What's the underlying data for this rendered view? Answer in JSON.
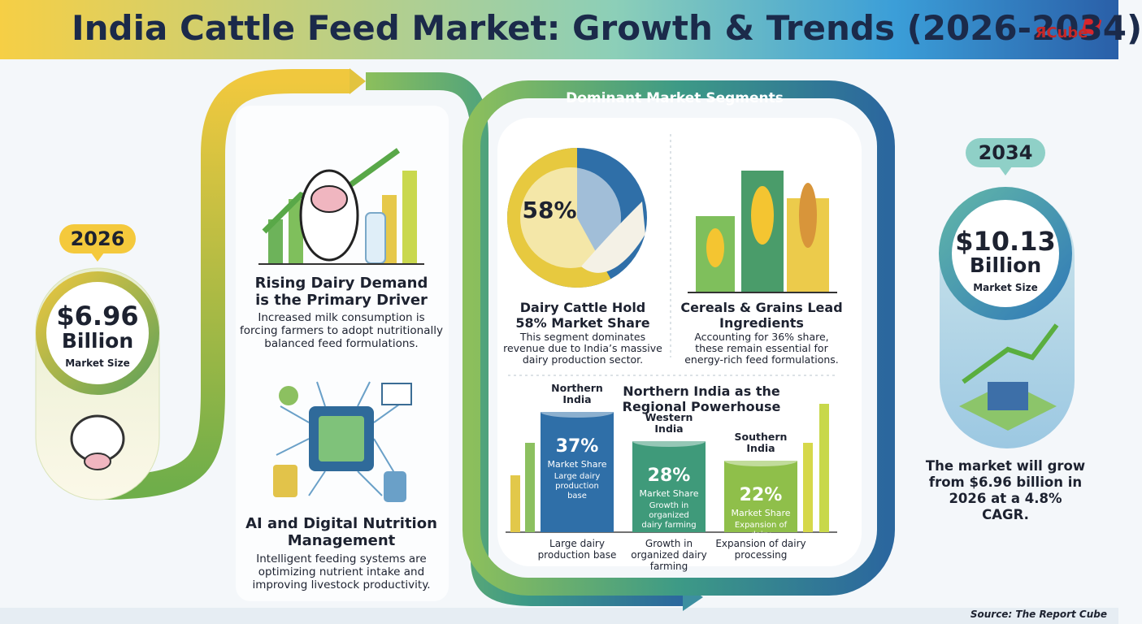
{
  "header": {
    "title": "India Cattle Feed Market: Growth & Trends (2026-2034)",
    "logo": "ЯCube"
  },
  "start": {
    "year": "2026",
    "amount": "$6.96",
    "unit": "Billion",
    "caption": "Market Size"
  },
  "end": {
    "year": "2034",
    "amount": "$10.13",
    "unit": "Billion",
    "caption": "Market Size",
    "summary": "The market will grow from $6.96 billion in 2026 at a 4.8% CAGR."
  },
  "drivers": [
    {
      "title": "Rising Dairy Demand is the Primary Driver",
      "body": "Increased milk consumption is forcing farmers to adopt nutritionally balanced feed formulations."
    },
    {
      "title": "AI and Digital Nutrition Management",
      "body": "Intelligent feeding systems are optimizing nutrient intake and improving livestock productivity."
    }
  ],
  "segments": {
    "heading": "Dominant Market Segments",
    "dairy": {
      "value": 58,
      "label": "58%",
      "color": "#e7c93f",
      "title": "Dairy Cattle Hold 58% Market Share",
      "body": "This segment dominates revenue due to India’s massive dairy production sector."
    },
    "cereals": {
      "title": "Cereals & Grains Lead Ingredients",
      "body": "Accounting for 36% share, these remain essential for energy-rich feed formulations."
    },
    "regional": {
      "title": "Northern India as the Regional Powerhouse",
      "regions": [
        {
          "name": "Northern India",
          "value": 37,
          "label": "37%",
          "unit": "Market Share",
          "note": "Large dairy production base",
          "color": "#2f6fa8"
        },
        {
          "name": "Western India",
          "value": 28,
          "label": "28%",
          "unit": "Market Share",
          "note": "Growth in organized dairy farming",
          "color": "#3f9a7a"
        },
        {
          "name": "Southern India",
          "value": 22,
          "label": "22%",
          "unit": "Market Share",
          "note": "Expansion of dairy processing",
          "color": "#8fbf4a"
        }
      ]
    }
  },
  "footer": {
    "source": "Source: The Report Cube"
  }
}
